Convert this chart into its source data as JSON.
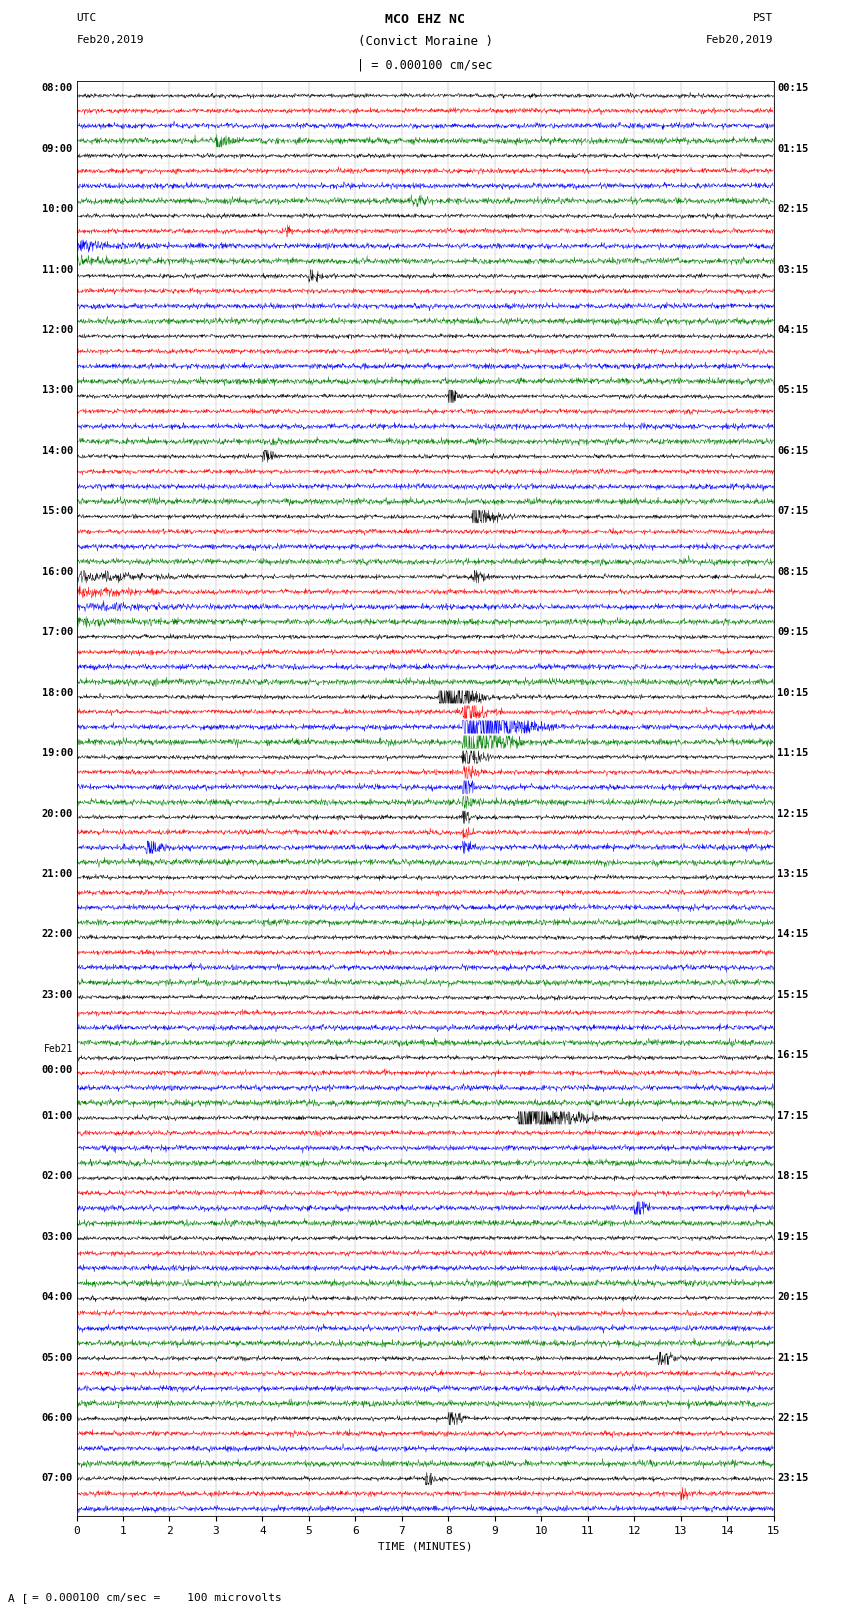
{
  "title_line1": "MCO EHZ NC",
  "title_line2": "(Convict Moraine )",
  "scale_text": "| = 0.000100 cm/sec",
  "left_label": "UTC",
  "left_date": "Feb20,2019",
  "right_label": "PST",
  "right_date": "Feb20,2019",
  "xlabel": "TIME (MINUTES)",
  "bottom_note": "= 0.000100 cm/sec =    100 microvolts",
  "xlim": [
    0,
    15
  ],
  "background_color": "#ffffff",
  "trace_colors": [
    "black",
    "red",
    "blue",
    "green"
  ],
  "utc_times": [
    "08:00",
    "",
    "",
    "",
    "09:00",
    "",
    "",
    "",
    "10:00",
    "",
    "",
    "",
    "11:00",
    "",
    "",
    "",
    "12:00",
    "",
    "",
    "",
    "13:00",
    "",
    "",
    "",
    "14:00",
    "",
    "",
    "",
    "15:00",
    "",
    "",
    "",
    "16:00",
    "",
    "",
    "",
    "17:00",
    "",
    "",
    "",
    "18:00",
    "",
    "",
    "",
    "19:00",
    "",
    "",
    "",
    "20:00",
    "",
    "",
    "",
    "21:00",
    "",
    "",
    "",
    "22:00",
    "",
    "",
    "",
    "23:00",
    "",
    "",
    "",
    "Feb21",
    "00:00",
    "",
    "",
    "01:00",
    "",
    "",
    "",
    "02:00",
    "",
    "",
    "",
    "03:00",
    "",
    "",
    "",
    "04:00",
    "",
    "",
    "",
    "05:00",
    "",
    "",
    "",
    "06:00",
    "",
    "",
    "",
    "07:00",
    "",
    ""
  ],
  "pst_times": [
    "00:15",
    "",
    "",
    "",
    "01:15",
    "",
    "",
    "",
    "02:15",
    "",
    "",
    "",
    "03:15",
    "",
    "",
    "",
    "04:15",
    "",
    "",
    "",
    "05:15",
    "",
    "",
    "",
    "06:15",
    "",
    "",
    "",
    "07:15",
    "",
    "",
    "",
    "08:15",
    "",
    "",
    "",
    "09:15",
    "",
    "",
    "",
    "10:15",
    "",
    "",
    "",
    "11:15",
    "",
    "",
    "",
    "12:15",
    "",
    "",
    "",
    "13:15",
    "",
    "",
    "",
    "14:15",
    "",
    "",
    "",
    "15:15",
    "",
    "",
    "",
    "16:15",
    "",
    "",
    "",
    "17:15",
    "",
    "",
    "",
    "18:15",
    "",
    "",
    "",
    "19:15",
    "",
    "",
    "",
    "20:15",
    "",
    "",
    "",
    "21:15",
    "",
    "",
    "",
    "22:15",
    "",
    "",
    "",
    "23:15",
    "",
    ""
  ],
  "num_rows": 95,
  "seed": 42
}
